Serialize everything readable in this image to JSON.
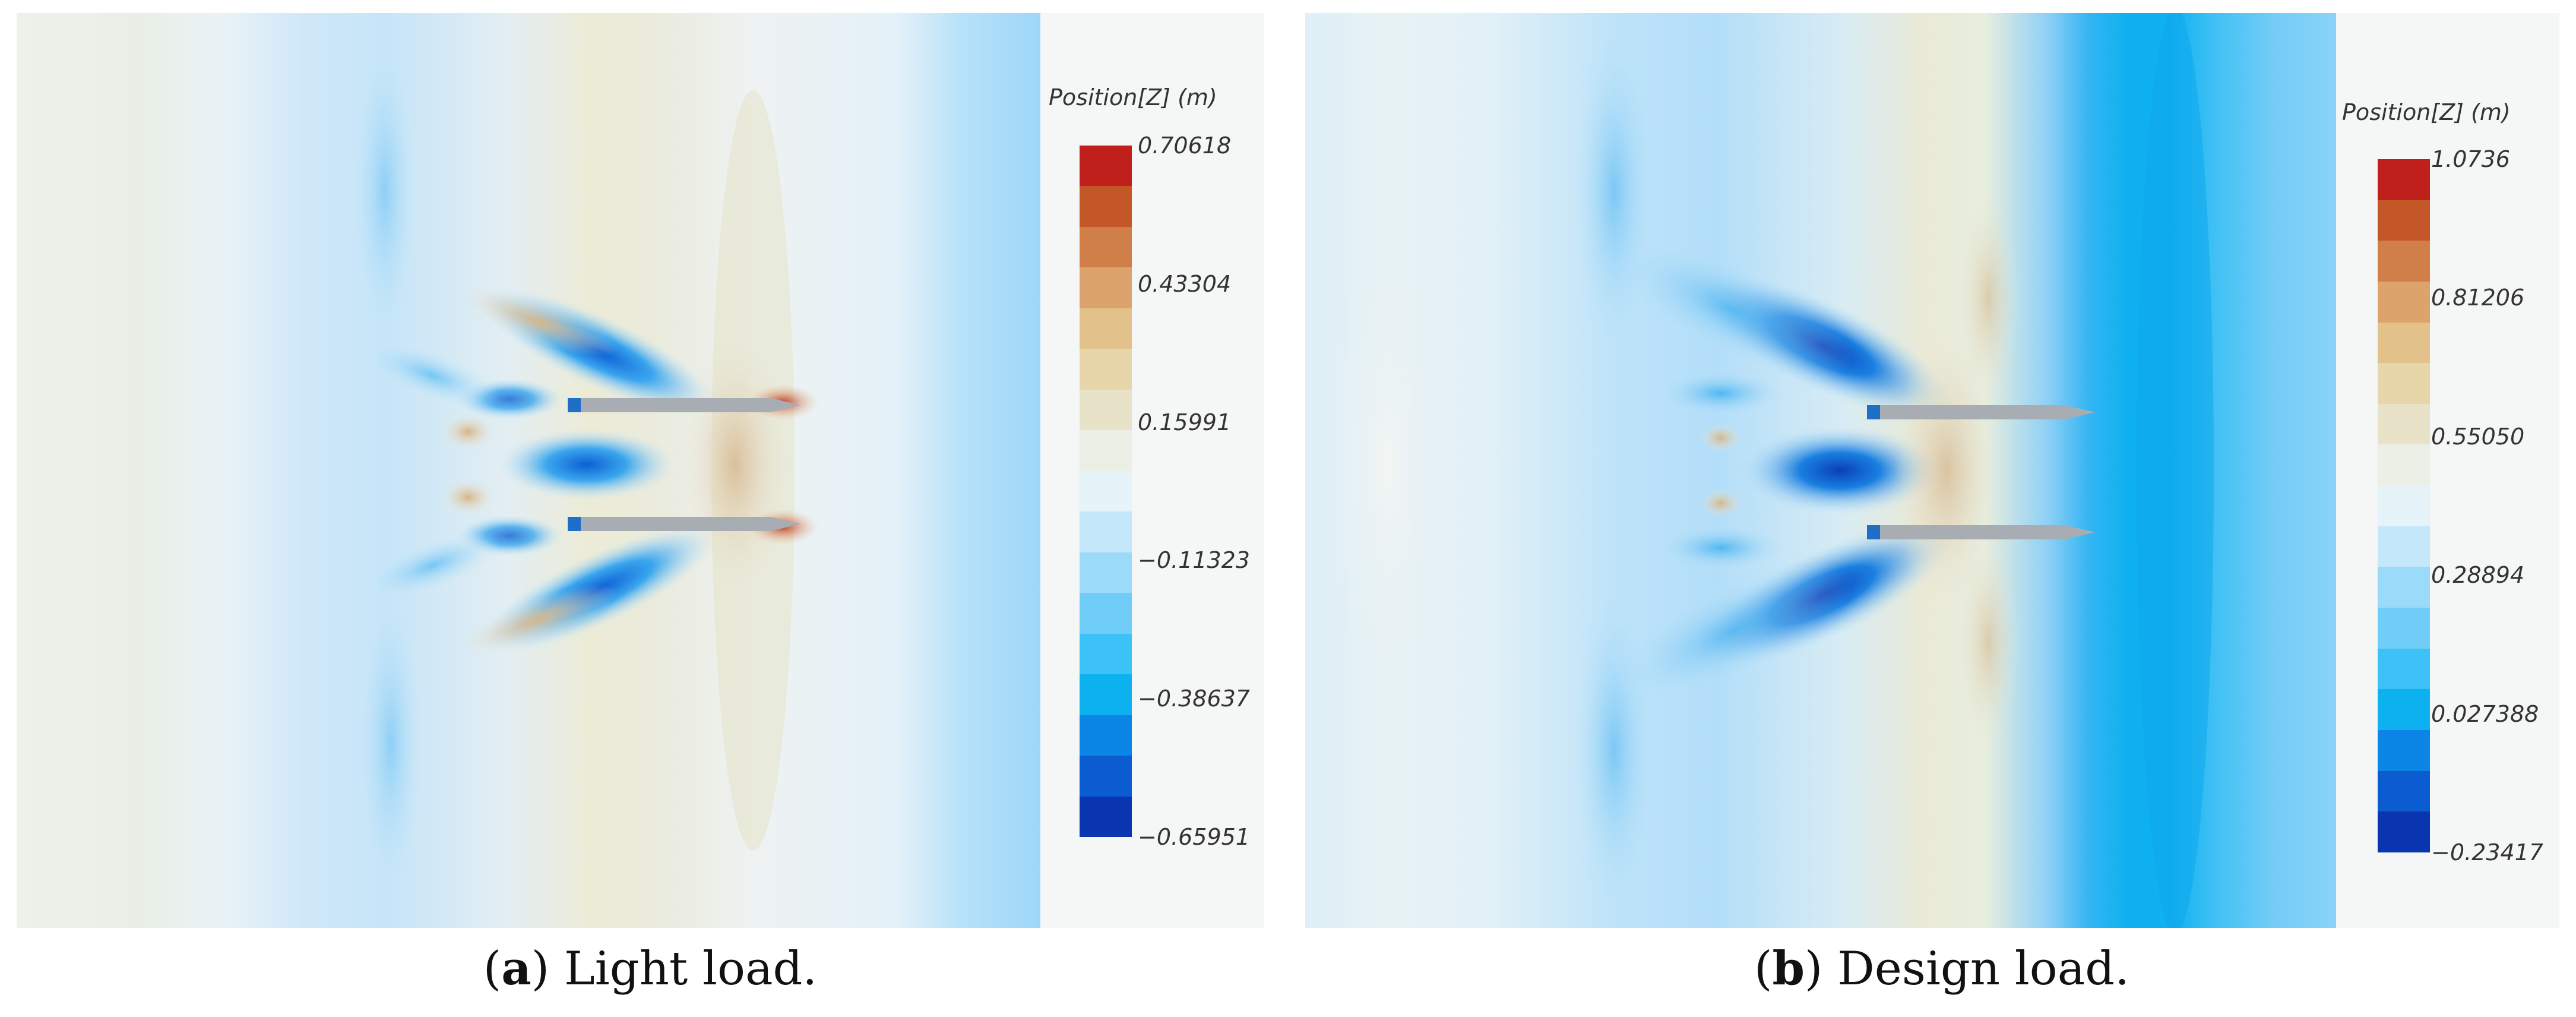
{
  "panels": [
    {
      "id": "a",
      "colorbar_title": "Position[Z] (m)",
      "ticks": [
        "0.70618",
        "0.43304",
        "0.15991",
        "−0.11323",
        "−0.38637",
        "−0.65951"
      ],
      "caption_letter": "a",
      "caption_text": ") Light load."
    },
    {
      "id": "b",
      "colorbar_title": "Position[Z] (m)",
      "ticks": [
        "1.0736",
        "0.81206",
        "0.55050",
        "0.28894",
        "0.027388",
        "−0.23417"
      ],
      "caption_letter": "b",
      "caption_text": ") Design load."
    }
  ],
  "colors": {
    "colormap": [
      "#0a35b0",
      "#0b5cd0",
      "#0b86e6",
      "#0eb1f0",
      "#3cc2f6",
      "#6fcdf7",
      "#9bdaf8",
      "#c4e8f9",
      "#e6f3f8",
      "#ecefe6",
      "#e8e3c8",
      "#e6d6aa",
      "#e2c28a",
      "#dca46c",
      "#d17f48",
      "#c45728",
      "#c0201c"
    ]
  }
}
